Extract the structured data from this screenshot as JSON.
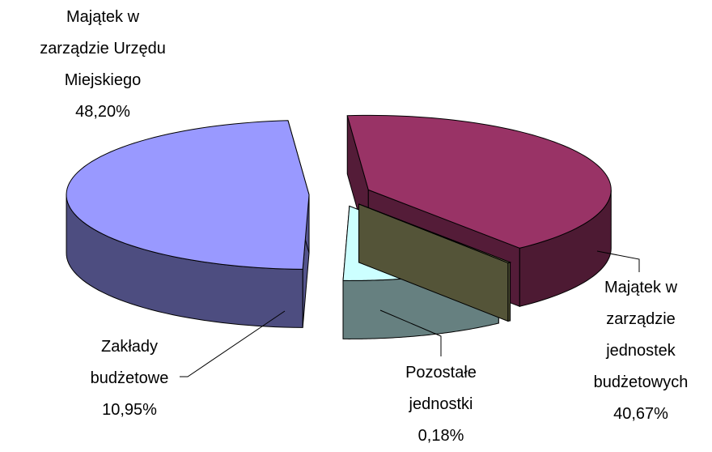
{
  "chart_data": {
    "type": "pie3d",
    "categories": [
      "Majątek w\nzarządzie Urzędu\nMiejskiego",
      "Majątek w\nzarządzie\njednostek\nbudżetowych",
      "Zakłady\nbudżetowe",
      "Pozostałe\njednostki"
    ],
    "values": [
      48.2,
      40.67,
      10.95,
      0.18
    ],
    "value_labels": [
      "48,20%",
      "40,67%",
      "10,95%",
      "0,18%"
    ],
    "colors": [
      "#9999ff",
      "#993366",
      "#ccffff",
      "#999966"
    ]
  }
}
